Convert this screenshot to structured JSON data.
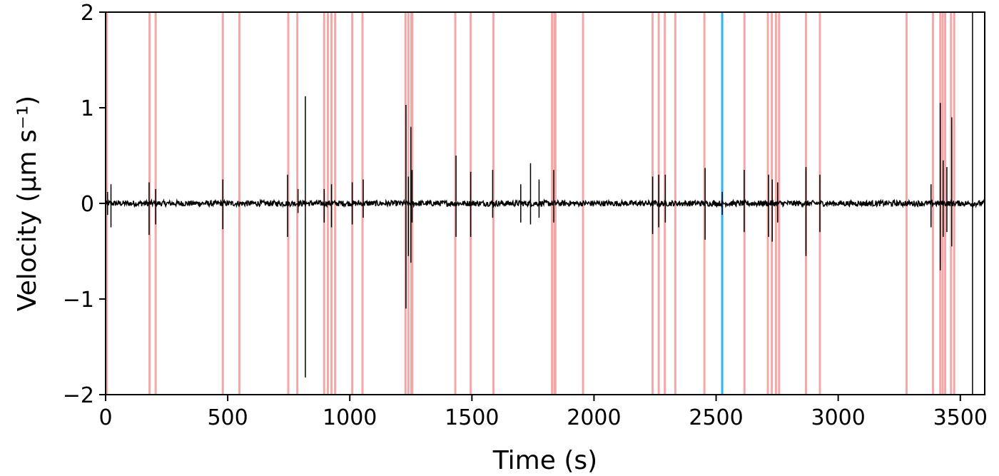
{
  "chart_data": {
    "type": "line",
    "xlabel": "Time (s)",
    "ylabel": "Velocity (μm s⁻¹)",
    "xlim": [
      0,
      3600
    ],
    "ylim": [
      -2,
      2
    ],
    "x_ticks": [
      0,
      500,
      1000,
      1500,
      2000,
      2500,
      3000,
      3500
    ],
    "x_tick_labels": [
      "0",
      "500",
      "1000",
      "1500",
      "2000",
      "2500",
      "3000",
      "3500"
    ],
    "y_ticks": [
      -2,
      -1,
      0,
      1,
      2
    ],
    "y_tick_labels": [
      "−2",
      "−1",
      "0",
      "1",
      "2"
    ],
    "grid": false,
    "series_color": "#000000",
    "event_color": "#f4a7a7",
    "highlight_color": "#29b6f6",
    "baseline_noise_amplitude": 0.03,
    "events": [
      5,
      180,
      205,
      480,
      548,
      748,
      785,
      895,
      910,
      925,
      940,
      1010,
      1052,
      1228,
      1240,
      1252,
      1256,
      1432,
      1495,
      1588,
      1828,
      1838,
      1842,
      1955,
      2240,
      2265,
      2290,
      2333,
      2452,
      2616,
      2712,
      2728,
      2745,
      2758,
      2868,
      2925,
      3280,
      3388,
      3418,
      3428,
      3438,
      3462,
      3475
    ],
    "highlight_events": [
      2525
    ],
    "spikes": [
      {
        "x": 8,
        "min": -0.12,
        "max": 0.12
      },
      {
        "x": 22,
        "min": -0.25,
        "max": 0.2
      },
      {
        "x": 178,
        "min": -0.33,
        "max": 0.22
      },
      {
        "x": 205,
        "min": -0.22,
        "max": 0.15
      },
      {
        "x": 480,
        "min": -0.27,
        "max": 0.25
      },
      {
        "x": 745,
        "min": -0.35,
        "max": 0.3
      },
      {
        "x": 788,
        "min": -0.1,
        "max": 0.15
      },
      {
        "x": 818,
        "min": -1.82,
        "max": 1.12
      },
      {
        "x": 895,
        "min": -0.2,
        "max": 0.15
      },
      {
        "x": 925,
        "min": -0.25,
        "max": 0.2
      },
      {
        "x": 1010,
        "min": -0.22,
        "max": 0.22
      },
      {
        "x": 1055,
        "min": -0.15,
        "max": 0.25
      },
      {
        "x": 1230,
        "min": -1.1,
        "max": 1.03
      },
      {
        "x": 1240,
        "min": -0.55,
        "max": 0.28
      },
      {
        "x": 1250,
        "min": -0.62,
        "max": 0.8
      },
      {
        "x": 1255,
        "min": -0.2,
        "max": 0.35
      },
      {
        "x": 1435,
        "min": -0.35,
        "max": 0.5
      },
      {
        "x": 1495,
        "min": -0.35,
        "max": 0.33
      },
      {
        "x": 1585,
        "min": -0.15,
        "max": 0.35
      },
      {
        "x": 1700,
        "min": -0.2,
        "max": 0.2
      },
      {
        "x": 1740,
        "min": -0.22,
        "max": 0.42
      },
      {
        "x": 1775,
        "min": -0.15,
        "max": 0.25
      },
      {
        "x": 1835,
        "min": -0.2,
        "max": 0.35
      },
      {
        "x": 2240,
        "min": -0.32,
        "max": 0.28
      },
      {
        "x": 2265,
        "min": -0.25,
        "max": 0.3
      },
      {
        "x": 2292,
        "min": -0.2,
        "max": 0.3
      },
      {
        "x": 2455,
        "min": -0.38,
        "max": 0.37
      },
      {
        "x": 2525,
        "min": -0.12,
        "max": 0.12
      },
      {
        "x": 2615,
        "min": -0.3,
        "max": 0.35
      },
      {
        "x": 2715,
        "min": -0.35,
        "max": 0.3
      },
      {
        "x": 2730,
        "min": -0.4,
        "max": 0.25
      },
      {
        "x": 2752,
        "min": -0.2,
        "max": 0.22
      },
      {
        "x": 2868,
        "min": -0.55,
        "max": 0.38
      },
      {
        "x": 2925,
        "min": -0.3,
        "max": 0.3
      },
      {
        "x": 3380,
        "min": -0.25,
        "max": 0.2
      },
      {
        "x": 3418,
        "min": -0.7,
        "max": 1.05
      },
      {
        "x": 3430,
        "min": -0.35,
        "max": 0.45
      },
      {
        "x": 3445,
        "min": -0.3,
        "max": 0.38
      },
      {
        "x": 3465,
        "min": -0.45,
        "max": 0.9
      },
      {
        "x": 3550,
        "min": -2.0,
        "max": 2.0
      }
    ]
  }
}
